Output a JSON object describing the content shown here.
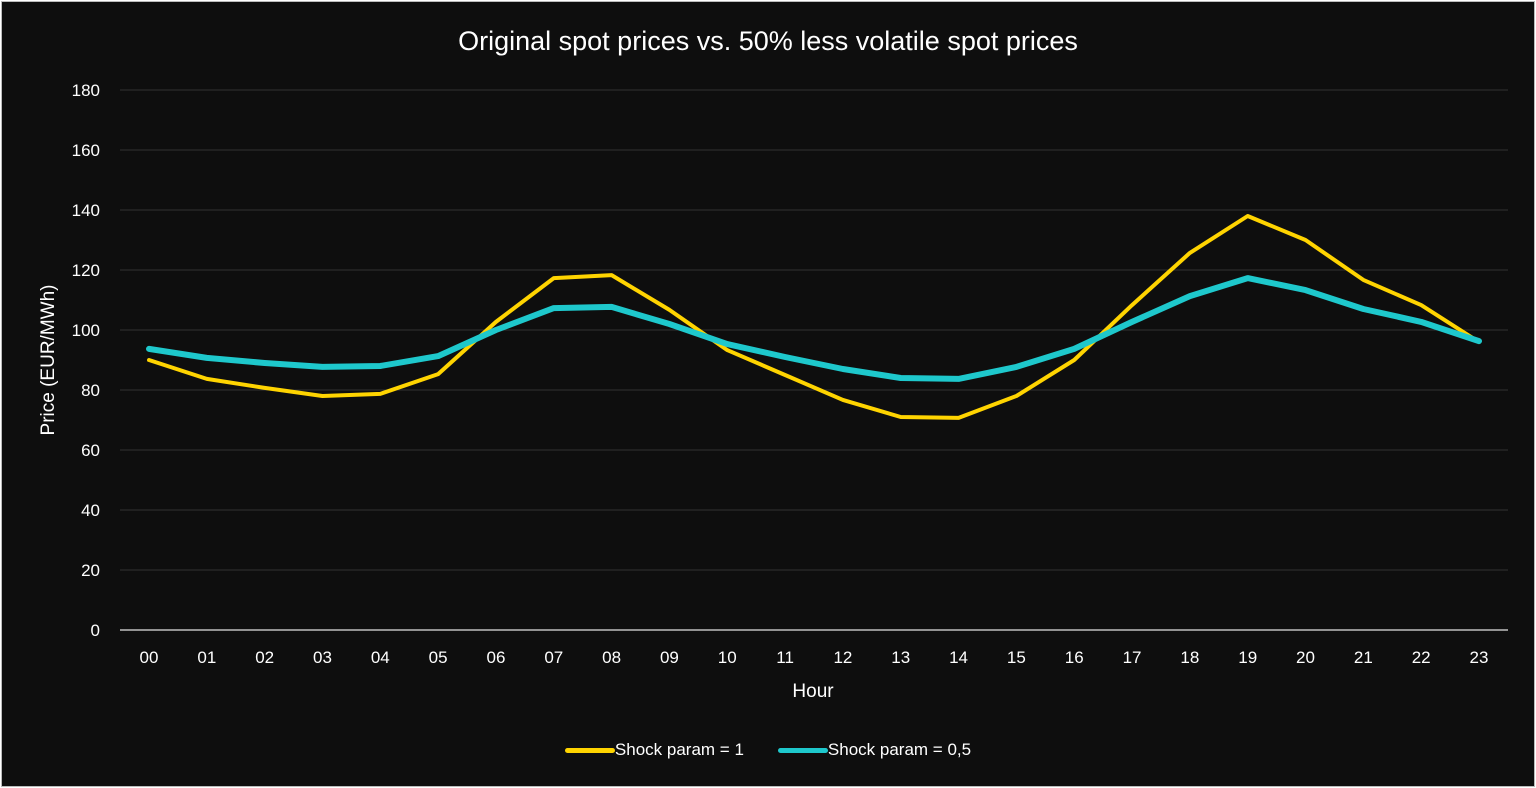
{
  "chart_data": {
    "type": "line",
    "title": "Original spot prices vs. 50% less volatile spot prices",
    "xlabel": "Hour",
    "ylabel": "Price (EUR/MWh)",
    "ylim": [
      0,
      180
    ],
    "yticks": [
      "0",
      "20",
      "40",
      "60",
      "80",
      "100",
      "120",
      "140",
      "160",
      "180"
    ],
    "categories": [
      "00",
      "01",
      "02",
      "03",
      "04",
      "05",
      "06",
      "07",
      "08",
      "09",
      "10",
      "11",
      "12",
      "13",
      "14",
      "15",
      "16",
      "17",
      "18",
      "19",
      "20",
      "21",
      "22",
      "23"
    ],
    "grid": true,
    "legend_position": "bottom",
    "series": [
      {
        "name": "Shock param = 1",
        "color": "#FFD400",
        "values": [
          90,
          83.7,
          80.7,
          78,
          78.7,
          85.3,
          102.7,
          117.3,
          118.3,
          106.7,
          93.3,
          85,
          76.7,
          71,
          70.7,
          78,
          90,
          108.3,
          125.7,
          138,
          130,
          116.7,
          108.3,
          96
        ]
      },
      {
        "name": "Shock param = 0,5",
        "color": "#1EC8CC",
        "values": [
          93.7,
          90.7,
          89,
          87.7,
          88,
          91.3,
          100,
          107.3,
          107.7,
          102,
          95.3,
          91,
          87,
          84,
          83.7,
          87.7,
          93.7,
          102.7,
          111.3,
          117.3,
          113.3,
          107,
          102.7,
          96.3
        ]
      }
    ]
  }
}
